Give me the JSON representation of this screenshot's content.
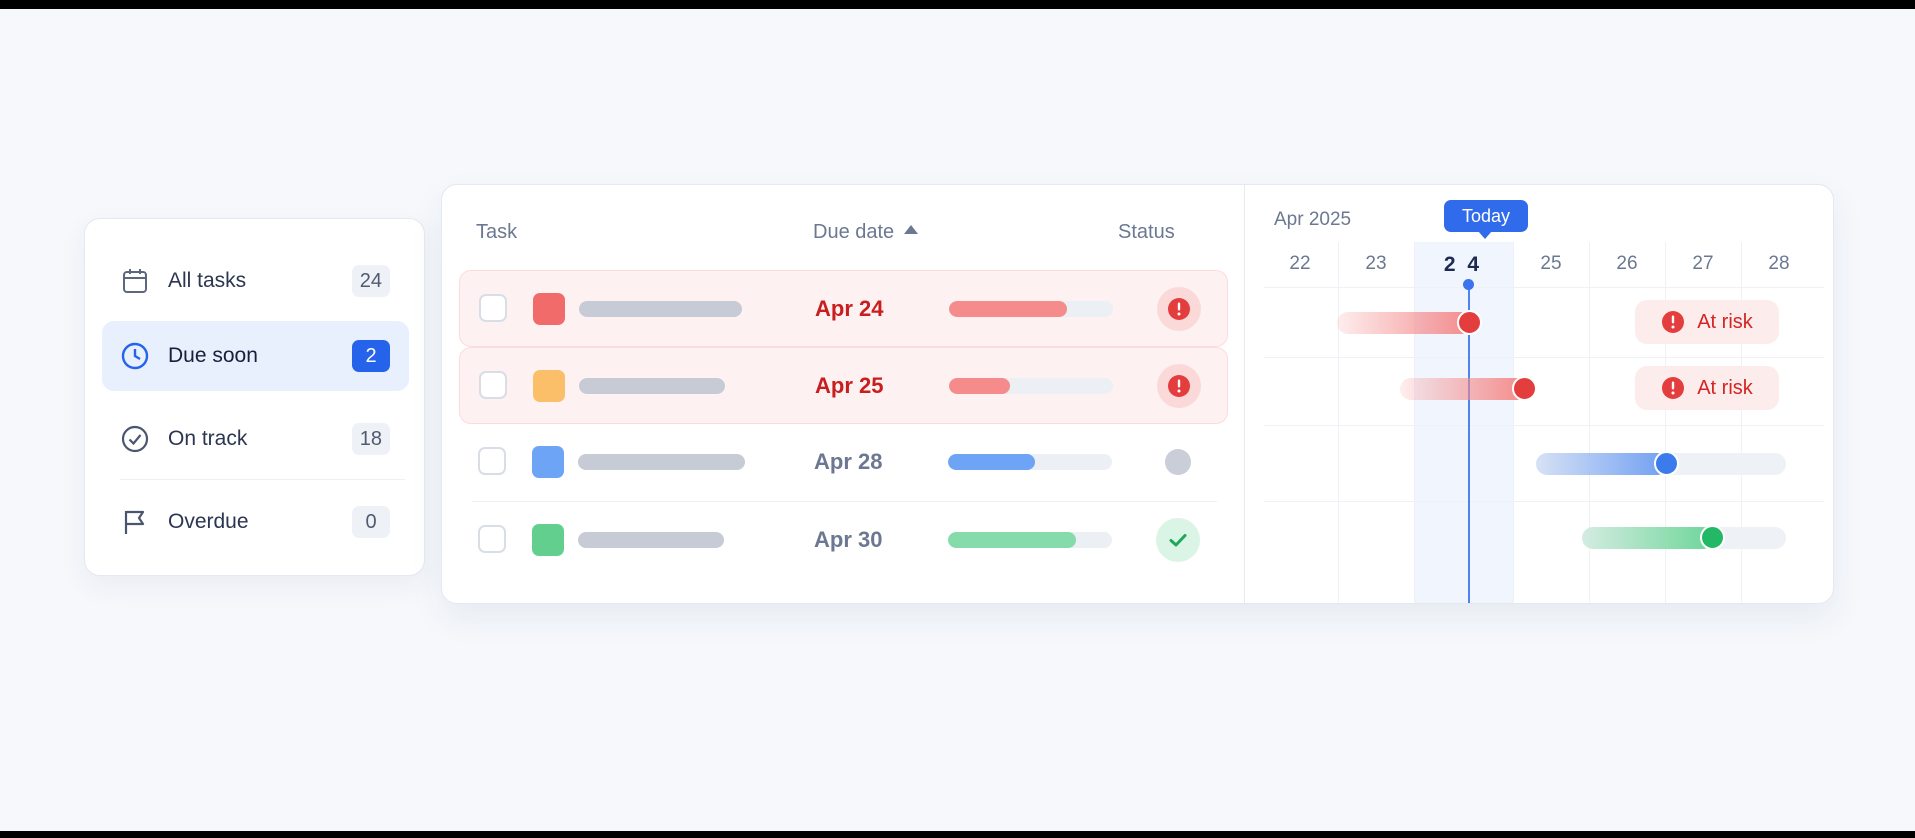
{
  "filters": [
    {
      "label": "All tasks",
      "count": "24",
      "icon": "calendar-icon",
      "active": false
    },
    {
      "label": "Due soon",
      "count": "2",
      "icon": "clock-icon",
      "active": true
    },
    {
      "label": "On track",
      "count": "18",
      "icon": "check-circle-icon",
      "active": false
    },
    {
      "label": "Overdue",
      "count": "0",
      "icon": "flag-icon",
      "active": false
    }
  ],
  "table": {
    "headers": {
      "task": "Task",
      "due": "Due date",
      "status": "Status"
    },
    "sort": {
      "column": "due",
      "direction": "asc"
    },
    "rows": [
      {
        "color": "#f26b6b",
        "due": "Apr 24",
        "progress": 0.72,
        "status": "at-risk",
        "bar_color": "#f58b8b",
        "due_color": "#c81e1e"
      },
      {
        "color": "#fbbf69",
        "due": "Apr 25",
        "progress": 0.37,
        "status": "at-risk",
        "bar_color": "#f58b8b",
        "due_color": "#c81e1e"
      },
      {
        "color": "#6ea4f6",
        "due": "Apr 28",
        "progress": 0.53,
        "status": "neutral",
        "bar_color": "#6ea4f6",
        "due_color": "#6c7891"
      },
      {
        "color": "#63cf8f",
        "due": "Apr 30",
        "progress": 0.78,
        "status": "done",
        "bar_color": "#86dbaa",
        "due_color": "#6c7891"
      }
    ]
  },
  "timeline": {
    "month": "Apr 2025",
    "days": [
      "22",
      "23",
      "2 4",
      "25",
      "26",
      "27",
      "28"
    ],
    "today_index": 2,
    "today_label": "Today",
    "risk_label": "At risk"
  },
  "colors": {
    "accent": "#2563eb",
    "risk": "#e43d3d",
    "ok": "#22b865"
  }
}
